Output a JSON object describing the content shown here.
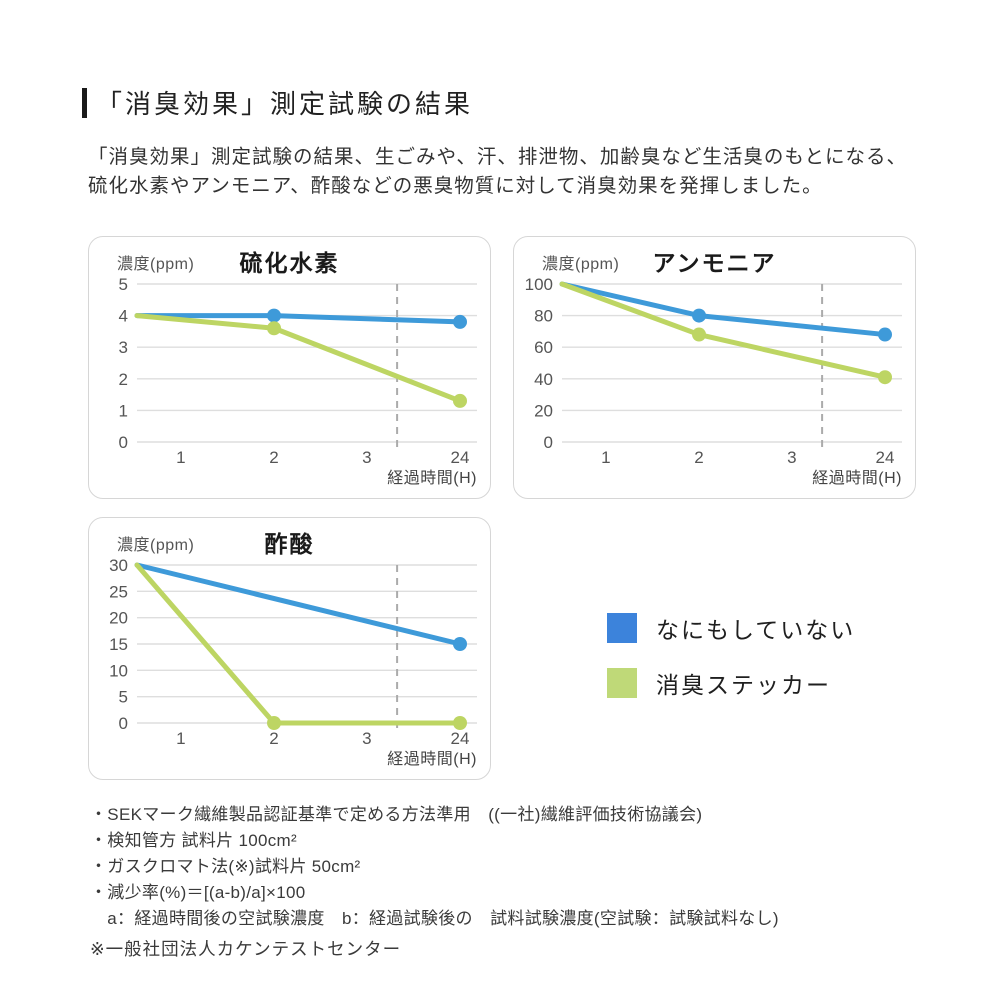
{
  "header": {
    "title": "「消臭効果」測定試験の結果"
  },
  "intro": {
    "line1": "「消臭効果」測定試験の結果、生ごみや、汗、排泄物、加齢臭など生活臭のもとになる、",
    "line2": "硫化水素やアンモニア、酢酸などの悪臭物質に対して消臭効果を発揮しました。"
  },
  "colors": {
    "blue_line": "#3E9AD9",
    "green_line": "#BDD563",
    "blue_legend": "#3C83DB",
    "green_legend": "#BFD978",
    "grid": "#dedede",
    "dashed": "#ababab",
    "card_border": "#d6d6d6"
  },
  "chart_data": [
    {
      "type": "line",
      "title": "硫化水素",
      "ylabel": "濃度(ppm)",
      "xlabel": "経過時間(H)",
      "x_ticks": [
        "1",
        "2",
        "3",
        "24"
      ],
      "y_ticks": [
        5,
        4,
        3,
        2,
        1,
        0
      ],
      "ylim": [
        0,
        5
      ],
      "series": [
        {
          "name": "なにもしていない",
          "color_key": "blue",
          "x": [
            "0",
            "2",
            "24"
          ],
          "values": [
            4.0,
            4.0,
            3.8
          ],
          "dots": [
            false,
            true,
            true
          ]
        },
        {
          "name": "消臭ステッカー",
          "color_key": "green",
          "x": [
            "0",
            "2",
            "24"
          ],
          "values": [
            4.0,
            3.6,
            1.3
          ],
          "dots": [
            false,
            true,
            true
          ]
        }
      ]
    },
    {
      "type": "line",
      "title": "アンモニア",
      "ylabel": "濃度(ppm)",
      "xlabel": "経過時間(H)",
      "x_ticks": [
        "1",
        "2",
        "3",
        "24"
      ],
      "y_ticks": [
        100,
        80,
        60,
        40,
        20,
        0
      ],
      "ylim": [
        0,
        100
      ],
      "series": [
        {
          "name": "なにもしていない",
          "color_key": "blue",
          "x": [
            "0",
            "2",
            "24"
          ],
          "values": [
            100,
            80,
            68
          ],
          "dots": [
            false,
            true,
            true
          ]
        },
        {
          "name": "消臭ステッカー",
          "color_key": "green",
          "x": [
            "0",
            "2",
            "24"
          ],
          "values": [
            100,
            68,
            41
          ],
          "dots": [
            false,
            true,
            true
          ]
        }
      ]
    },
    {
      "type": "line",
      "title": "酢酸",
      "ylabel": "濃度(ppm)",
      "xlabel": "経過時間(H)",
      "x_ticks": [
        "1",
        "2",
        "3",
        "24"
      ],
      "y_ticks": [
        30,
        25,
        20,
        15,
        10,
        5,
        0
      ],
      "ylim": [
        0,
        30
      ],
      "series": [
        {
          "name": "なにもしていない",
          "color_key": "blue",
          "x": [
            "0",
            "24"
          ],
          "values": [
            30,
            15
          ],
          "dots": [
            false,
            true
          ]
        },
        {
          "name": "消臭ステッカー",
          "color_key": "green",
          "x": [
            "0",
            "2",
            "24"
          ],
          "values": [
            30,
            0,
            0
          ],
          "dots": [
            false,
            true,
            true
          ]
        }
      ]
    }
  ],
  "legend": {
    "items": [
      {
        "label": "なにもしていない",
        "color_key": "blue_legend"
      },
      {
        "label": "消臭ステッカー",
        "color_key": "green_legend"
      }
    ]
  },
  "footnotes": {
    "items": [
      "・SEKマーク繊維製品認証基準で定める方法準用　((一社)繊維評価技術協議会)",
      "・検知管方 試料片 100cm²",
      "・ガスクロマト法(※)試料片 50cm²",
      "・減少率(%)＝[(a-b)/a]×100",
      "　a：経過時間後の空試験濃度　b：経過試験後の　試料試験濃度(空試験：試験試料なし)"
    ],
    "note": "※一般社団法人カケンテストセンター"
  }
}
